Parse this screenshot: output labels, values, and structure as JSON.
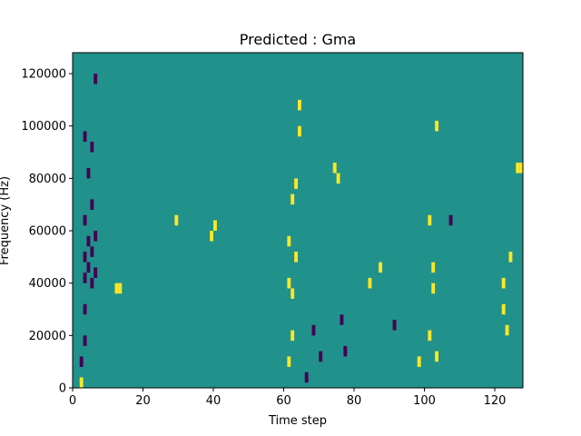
{
  "chart_data": {
    "type": "heatmap",
    "title": "Predicted : Gma",
    "xlabel": "Time step",
    "ylabel": "Frequency (Hz)",
    "xlim": [
      0,
      128
    ],
    "ylim": [
      0,
      128000
    ],
    "xticks": [
      0,
      20,
      40,
      60,
      80,
      100,
      120
    ],
    "yticks": [
      0,
      20000,
      40000,
      60000,
      80000,
      100000,
      120000
    ],
    "grid": false,
    "colors": {
      "background_cell": "#21918c",
      "low_cell": "#440154",
      "high_cell": "#fde725"
    },
    "cells": [
      {
        "t": 2,
        "f": 2000,
        "v": "high"
      },
      {
        "t": 2,
        "f": 10000,
        "v": "low"
      },
      {
        "t": 3,
        "f": 18000,
        "v": "low"
      },
      {
        "t": 3,
        "f": 30000,
        "v": "low"
      },
      {
        "t": 3,
        "f": 42000,
        "v": "low"
      },
      {
        "t": 3,
        "f": 50000,
        "v": "low"
      },
      {
        "t": 3,
        "f": 64000,
        "v": "low"
      },
      {
        "t": 3,
        "f": 96000,
        "v": "low"
      },
      {
        "t": 4,
        "f": 46000,
        "v": "low"
      },
      {
        "t": 4,
        "f": 56000,
        "v": "low"
      },
      {
        "t": 4,
        "f": 82000,
        "v": "low"
      },
      {
        "t": 5,
        "f": 40000,
        "v": "low"
      },
      {
        "t": 5,
        "f": 52000,
        "v": "low"
      },
      {
        "t": 5,
        "f": 70000,
        "v": "low"
      },
      {
        "t": 5,
        "f": 92000,
        "v": "low"
      },
      {
        "t": 6,
        "f": 44000,
        "v": "low"
      },
      {
        "t": 6,
        "f": 58000,
        "v": "low"
      },
      {
        "t": 6,
        "f": 118000,
        "v": "low"
      },
      {
        "t": 12,
        "f": 38000,
        "v": "high"
      },
      {
        "t": 13,
        "f": 38000,
        "v": "high"
      },
      {
        "t": 29,
        "f": 64000,
        "v": "high"
      },
      {
        "t": 39,
        "f": 58000,
        "v": "high"
      },
      {
        "t": 40,
        "f": 62000,
        "v": "high"
      },
      {
        "t": 61,
        "f": 10000,
        "v": "high"
      },
      {
        "t": 61,
        "f": 40000,
        "v": "high"
      },
      {
        "t": 61,
        "f": 56000,
        "v": "high"
      },
      {
        "t": 62,
        "f": 20000,
        "v": "high"
      },
      {
        "t": 62,
        "f": 36000,
        "v": "high"
      },
      {
        "t": 62,
        "f": 72000,
        "v": "high"
      },
      {
        "t": 63,
        "f": 50000,
        "v": "high"
      },
      {
        "t": 63,
        "f": 78000,
        "v": "high"
      },
      {
        "t": 64,
        "f": 98000,
        "v": "high"
      },
      {
        "t": 64,
        "f": 108000,
        "v": "high"
      },
      {
        "t": 66,
        "f": 4000,
        "v": "low"
      },
      {
        "t": 68,
        "f": 22000,
        "v": "low"
      },
      {
        "t": 70,
        "f": 12000,
        "v": "low"
      },
      {
        "t": 74,
        "f": 84000,
        "v": "high"
      },
      {
        "t": 75,
        "f": 80000,
        "v": "high"
      },
      {
        "t": 76,
        "f": 26000,
        "v": "low"
      },
      {
        "t": 77,
        "f": 14000,
        "v": "low"
      },
      {
        "t": 84,
        "f": 40000,
        "v": "high"
      },
      {
        "t": 87,
        "f": 46000,
        "v": "high"
      },
      {
        "t": 91,
        "f": 24000,
        "v": "low"
      },
      {
        "t": 98,
        "f": 10000,
        "v": "high"
      },
      {
        "t": 101,
        "f": 20000,
        "v": "high"
      },
      {
        "t": 101,
        "f": 64000,
        "v": "high"
      },
      {
        "t": 102,
        "f": 38000,
        "v": "high"
      },
      {
        "t": 102,
        "f": 46000,
        "v": "high"
      },
      {
        "t": 103,
        "f": 100000,
        "v": "high"
      },
      {
        "t": 103,
        "f": 12000,
        "v": "high"
      },
      {
        "t": 107,
        "f": 64000,
        "v": "low"
      },
      {
        "t": 122,
        "f": 40000,
        "v": "high"
      },
      {
        "t": 122,
        "f": 30000,
        "v": "high"
      },
      {
        "t": 123,
        "f": 22000,
        "v": "high"
      },
      {
        "t": 124,
        "f": 50000,
        "v": "high"
      },
      {
        "t": 126,
        "f": 84000,
        "v": "high"
      },
      {
        "t": 127,
        "f": 84000,
        "v": "high"
      }
    ]
  }
}
